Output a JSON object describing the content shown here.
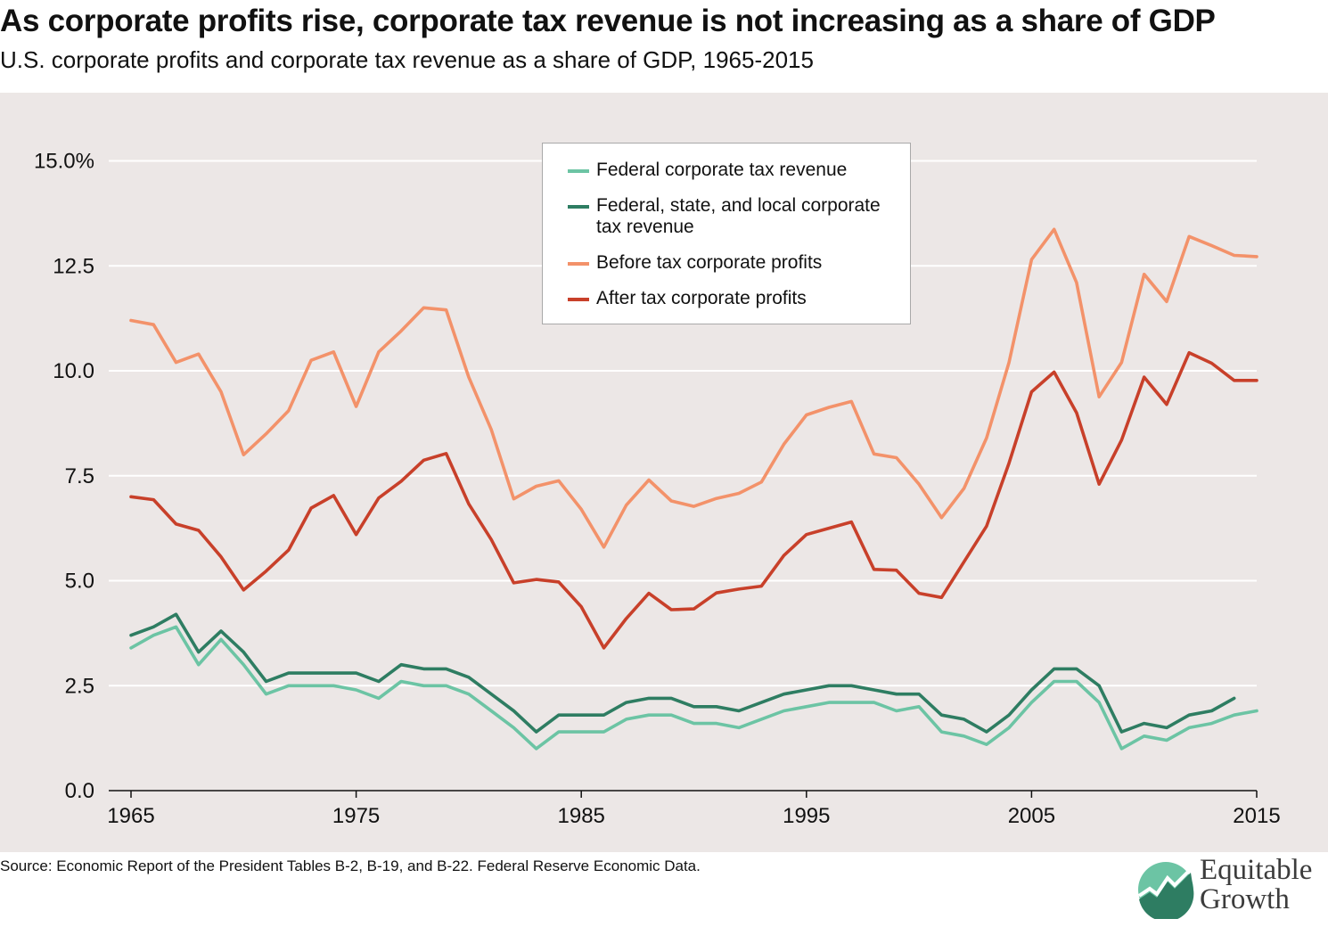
{
  "title": "As corporate profits rise, corporate tax revenue is not increasing as a share of GDP",
  "subtitle": "U.S. corporate profits and corporate tax revenue as a share of GDP, 1965-2015",
  "source": "Source: Economic Report of the President Tables B-2, B-19, and B-22. Federal Reserve Economic Data.",
  "logo": {
    "line1": "Equitable",
    "line2": "Growth",
    "icon": "growth-chart-icon"
  },
  "colors": {
    "background": "#ece7e6",
    "grid": "#ffffff"
  },
  "chart_data": {
    "type": "line",
    "title": "",
    "xlabel": "",
    "ylabel": "",
    "xlim": [
      1965,
      2015
    ],
    "ylim": [
      0,
      15
    ],
    "grid": true,
    "legend_position": "top-center",
    "x_ticks": [
      1965,
      1975,
      1985,
      1995,
      2005,
      2015
    ],
    "x_tick_labels": [
      "1965",
      "1975",
      "1985",
      "1995",
      "2005",
      "2015"
    ],
    "y_ticks": [
      0,
      2.5,
      5,
      7.5,
      10,
      12.5,
      15
    ],
    "y_tick_labels": [
      "0.0",
      "2.5",
      "5.0",
      "7.5",
      "10.0",
      "12.5",
      "15.0%"
    ],
    "x": [
      1965,
      1966,
      1967,
      1968,
      1969,
      1970,
      1971,
      1972,
      1973,
      1974,
      1975,
      1976,
      1977,
      1978,
      1979,
      1980,
      1981,
      1982,
      1983,
      1984,
      1985,
      1986,
      1987,
      1988,
      1989,
      1990,
      1991,
      1992,
      1993,
      1994,
      1995,
      1996,
      1997,
      1998,
      1999,
      2000,
      2001,
      2002,
      2003,
      2004,
      2005,
      2006,
      2007,
      2008,
      2009,
      2010,
      2011,
      2012,
      2013,
      2014,
      2015
    ],
    "series": [
      {
        "name": "Federal corporate tax revenue",
        "color": "#6cc4a4",
        "values": [
          3.4,
          3.7,
          3.9,
          3.0,
          3.6,
          3.0,
          2.3,
          2.5,
          2.5,
          2.5,
          2.4,
          2.2,
          2.6,
          2.5,
          2.5,
          2.3,
          1.9,
          1.5,
          1.0,
          1.4,
          1.4,
          1.4,
          1.7,
          1.8,
          1.8,
          1.6,
          1.6,
          1.5,
          1.7,
          1.9,
          2.0,
          2.1,
          2.1,
          2.1,
          1.9,
          2.0,
          1.4,
          1.3,
          1.1,
          1.5,
          2.1,
          2.6,
          2.6,
          2.1,
          1.0,
          1.3,
          1.2,
          1.5,
          1.6,
          1.8,
          1.9
        ]
      },
      {
        "name": "Federal, state, and local corporate tax revenue",
        "color": "#2e7d62",
        "values": [
          3.7,
          3.9,
          4.2,
          3.3,
          3.8,
          3.3,
          2.6,
          2.8,
          2.8,
          2.8,
          2.8,
          2.6,
          3.0,
          2.9,
          2.9,
          2.7,
          2.3,
          1.9,
          1.4,
          1.8,
          1.8,
          1.8,
          2.1,
          2.2,
          2.2,
          2.0,
          2.0,
          1.9,
          2.1,
          2.3,
          2.4,
          2.5,
          2.5,
          2.4,
          2.3,
          2.3,
          1.8,
          1.7,
          1.4,
          1.8,
          2.4,
          2.9,
          2.9,
          2.5,
          1.4,
          1.6,
          1.5,
          1.8,
          1.9,
          2.2,
          null
        ]
      },
      {
        "name": "Before tax corporate profits",
        "color": "#f3926a",
        "values": [
          11.2,
          11.1,
          10.2,
          10.4,
          9.5,
          8.0,
          8.5,
          9.05,
          10.25,
          10.45,
          9.15,
          10.45,
          10.95,
          11.5,
          11.45,
          9.85,
          8.6,
          6.95,
          7.25,
          7.38,
          6.7,
          5.8,
          6.8,
          7.4,
          6.9,
          6.77,
          6.96,
          7.08,
          7.35,
          8.25,
          8.95,
          9.13,
          9.27,
          8.02,
          7.93,
          7.3,
          6.5,
          7.2,
          8.4,
          10.2,
          12.65,
          13.37,
          12.1,
          9.38,
          10.2,
          12.3,
          11.65,
          13.2,
          12.98,
          12.75,
          12.72
        ]
      },
      {
        "name": "After tax corporate profits",
        "color": "#c8402a",
        "values": [
          7.0,
          6.93,
          6.35,
          6.2,
          5.57,
          4.78,
          5.23,
          5.73,
          6.73,
          7.03,
          6.1,
          6.97,
          7.37,
          7.87,
          8.03,
          6.83,
          5.98,
          4.95,
          5.03,
          4.97,
          4.38,
          3.4,
          4.1,
          4.7,
          4.31,
          4.33,
          4.71,
          4.8,
          4.87,
          5.6,
          6.1,
          6.25,
          6.4,
          5.27,
          5.25,
          4.7,
          4.6,
          5.45,
          6.3,
          7.8,
          9.5,
          9.97,
          9.0,
          7.3,
          8.35,
          9.85,
          9.2,
          10.43,
          10.18,
          9.77,
          9.77
        ]
      }
    ]
  }
}
